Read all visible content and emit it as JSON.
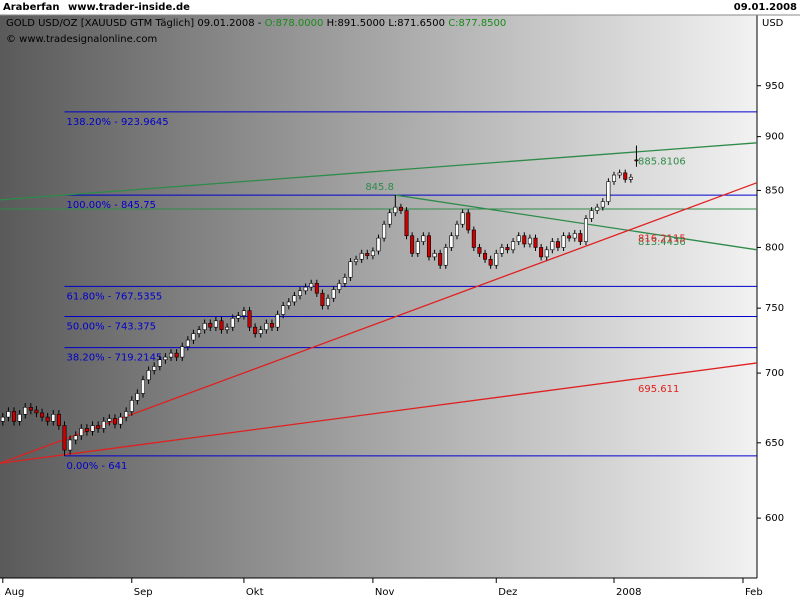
{
  "header": {
    "user": "Araberfan",
    "site": "www.trader-inside.de",
    "date": "09.01.2008"
  },
  "chart_data": {
    "type": "candlestick",
    "title": "GOLD USD/OZ [XAUUSD GTM  Täglich] 09.01.2008 -",
    "ohlc_labels": [
      {
        "value": 878,
        "label": "O:878.0000"
      },
      {
        "value": 891.5,
        "label": "H:891.5000"
      },
      {
        "value": 871.65,
        "label": "L:871.6500"
      },
      {
        "value": 877.85,
        "label": "C:877.8500"
      }
    ],
    "copyright": "© www.tradesignalonline.com",
    "y_label": "USD",
    "log_scale": true,
    "up_color": "#ffffff",
    "down_color": "#cc0000",
    "xlim": [
      -0.5,
      134.5
    ],
    "xticks": [
      {
        "value": 0,
        "label": "Aug"
      },
      {
        "value": 23,
        "label": "Sep"
      },
      {
        "value": 43,
        "label": "Okt"
      },
      {
        "value": 66,
        "label": "Nov"
      },
      {
        "value": 88,
        "label": "Dez"
      },
      {
        "value": 109,
        "label": "2008"
      },
      {
        "value": 132,
        "label": "Feb"
      }
    ],
    "ylim": [
      563,
      1008
    ],
    "yticks": [
      600,
      650,
      700,
      750,
      800,
      850,
      900,
      950
    ],
    "open": [
      665,
      668,
      672,
      665,
      670,
      675,
      673,
      671,
      668,
      665,
      670,
      662,
      645,
      652,
      655,
      660,
      658,
      662,
      660,
      665,
      667,
      663,
      668,
      672,
      680,
      685,
      695,
      702,
      705,
      710,
      712,
      715,
      712,
      720,
      725,
      730,
      733,
      738,
      735,
      740,
      733,
      735,
      742,
      744,
      748,
      735,
      730,
      733,
      738,
      735,
      745,
      752,
      755,
      760,
      764,
      767,
      770,
      762,
      752,
      758,
      765,
      770,
      775,
      788,
      790,
      795,
      793,
      797,
      808,
      820,
      830,
      835,
      832,
      810,
      795,
      805,
      810,
      792,
      795,
      785,
      800,
      810,
      820,
      830,
      815,
      800,
      795,
      790,
      785,
      795,
      800,
      798,
      805,
      810,
      803,
      808,
      800,
      792,
      798,
      805,
      800,
      810,
      808,
      812,
      805,
      825,
      832,
      835,
      840,
      858,
      864,
      866,
      860,
      878
    ],
    "high": [
      671,
      675,
      675,
      673,
      678,
      678,
      676,
      674,
      671,
      673,
      673,
      665,
      655,
      658,
      663,
      663,
      665,
      665,
      668,
      670,
      670,
      671,
      675,
      683,
      688,
      698,
      705,
      708,
      713,
      715,
      718,
      718,
      723,
      728,
      733,
      736,
      741,
      741,
      743,
      743,
      738,
      745,
      747,
      751,
      751,
      738,
      736,
      741,
      741,
      748,
      755,
      758,
      763,
      767,
      770,
      773,
      773,
      765,
      761,
      768,
      773,
      778,
      791,
      793,
      798,
      798,
      800,
      811,
      823,
      833,
      845.8,
      838,
      835,
      813,
      808,
      813,
      813,
      798,
      798,
      803,
      813,
      823,
      833,
      833,
      818,
      803,
      798,
      793,
      798,
      803,
      803,
      808,
      813,
      813,
      811,
      811,
      803,
      801,
      808,
      808,
      813,
      813,
      815,
      815,
      828,
      835,
      838,
      843,
      861,
      867,
      869,
      869,
      865,
      891.5
    ],
    "low": [
      662,
      665,
      662,
      662,
      667,
      670,
      668,
      665,
      662,
      662,
      659,
      641,
      642,
      649,
      652,
      655,
      655,
      657,
      657,
      662,
      660,
      660,
      665,
      669,
      677,
      682,
      692,
      699,
      702,
      707,
      709,
      709,
      709,
      717,
      722,
      727,
      730,
      732,
      732,
      730,
      730,
      732,
      739,
      741,
      732,
      727,
      727,
      730,
      732,
      732,
      742,
      749,
      752,
      757,
      761,
      764,
      759,
      749,
      749,
      755,
      762,
      767,
      772,
      785,
      787,
      790,
      790,
      794,
      805,
      817,
      827,
      829,
      807,
      792,
      792,
      802,
      789,
      789,
      782,
      782,
      797,
      807,
      817,
      812,
      797,
      792,
      787,
      782,
      782,
      792,
      795,
      795,
      802,
      800,
      800,
      797,
      789,
      789,
      795,
      797,
      797,
      805,
      805,
      802,
      802,
      822,
      829,
      832,
      837,
      855,
      861,
      857,
      857,
      871.65
    ],
    "close": [
      668,
      672,
      665,
      670,
      675,
      673,
      671,
      668,
      665,
      670,
      662,
      645,
      652,
      655,
      660,
      658,
      662,
      660,
      665,
      667,
      663,
      668,
      672,
      680,
      685,
      695,
      702,
      705,
      710,
      712,
      715,
      712,
      720,
      725,
      730,
      733,
      738,
      735,
      740,
      733,
      735,
      742,
      744,
      748,
      735,
      730,
      733,
      738,
      735,
      745,
      752,
      755,
      760,
      764,
      767,
      770,
      762,
      752,
      758,
      765,
      770,
      775,
      788,
      790,
      795,
      793,
      797,
      808,
      820,
      830,
      835,
      832,
      810,
      795,
      805,
      810,
      792,
      795,
      785,
      800,
      810,
      820,
      830,
      815,
      800,
      795,
      790,
      785,
      795,
      800,
      798,
      805,
      810,
      803,
      808,
      800,
      792,
      798,
      805,
      800,
      810,
      808,
      812,
      805,
      825,
      832,
      835,
      840,
      858,
      864,
      866,
      860,
      862,
      877.85
    ],
    "fib_start": 11,
    "fib_color": "#0000cc",
    "fib_levels": [
      {
        "value": 923.9645,
        "label": "138.20% - 923.9645"
      },
      {
        "value": 845.75,
        "label": "100.00% - 845.75"
      },
      {
        "value": 767.5355,
        "label": "61.80% - 767.5355"
      },
      {
        "value": 743.375,
        "label": "50.00% - 743.375"
      },
      {
        "value": 719.2145,
        "label": "38.20% - 719.2145"
      },
      {
        "value": 641,
        "label": "0.00% - 641"
      }
    ],
    "support_line": {
      "value": 833.4,
      "color": "#2e8b4a"
    },
    "peak_label": {
      "x": 70,
      "value": 845.8,
      "color": "#2e8b4a"
    },
    "trend_lines": [
      {
        "color": "#2e8b4a",
        "x": [
          -0.5,
          134.5
        ],
        "values": [
          841.5,
          894.1
        ],
        "label": 885.8106
      },
      {
        "color": "#2e8b4a",
        "x": [
          70,
          134.5
        ],
        "values": [
          845.8,
          798
        ],
        "label": 813.4436
      },
      {
        "color": "#e02020",
        "x": [
          -0.5,
          134.5
        ],
        "values": [
          636,
          857
        ],
        "label": 816.2115
      },
      {
        "color": "#e02020",
        "x": [
          -0.5,
          134.5
        ],
        "values": [
          636,
          707.6
        ],
        "label": 695.611
      }
    ]
  }
}
